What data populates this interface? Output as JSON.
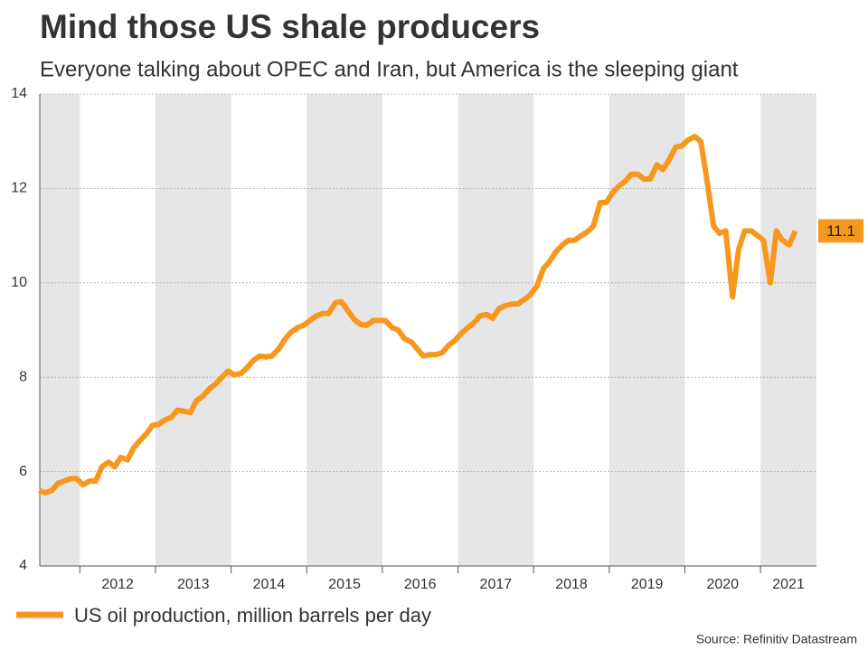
{
  "chart_data": {
    "type": "line",
    "title": "Mind those US shale producers",
    "subtitle": "Everyone talking about OPEC and Iran, but America is the sleeping giant",
    "source": "Source: Refinitiv Datastream",
    "xlim": [
      2011.47,
      2021.74
    ],
    "xticks": [
      2012,
      2013,
      2014,
      2015,
      2016,
      2017,
      2018,
      2019,
      2020,
      2021
    ],
    "ylim": [
      4,
      14
    ],
    "yticks": [
      4,
      6,
      8,
      10,
      12,
      14
    ],
    "grid": true,
    "x": [
      2011.46,
      2011.54,
      2011.63,
      2011.71,
      2011.79,
      2011.88,
      2011.96,
      2012.04,
      2012.13,
      2012.21,
      2012.29,
      2012.38,
      2012.46,
      2012.54,
      2012.63,
      2012.71,
      2012.79,
      2012.88,
      2012.96,
      2013.04,
      2013.13,
      2013.21,
      2013.29,
      2013.38,
      2013.46,
      2013.54,
      2013.63,
      2013.71,
      2013.79,
      2013.88,
      2013.96,
      2014.04,
      2014.13,
      2014.21,
      2014.29,
      2014.38,
      2014.46,
      2014.54,
      2014.63,
      2014.71,
      2014.79,
      2014.88,
      2014.96,
      2015.04,
      2015.13,
      2015.21,
      2015.29,
      2015.38,
      2015.46,
      2015.54,
      2015.63,
      2015.71,
      2015.79,
      2015.88,
      2015.96,
      2016.04,
      2016.13,
      2016.21,
      2016.29,
      2016.38,
      2016.46,
      2016.54,
      2016.63,
      2016.71,
      2016.79,
      2016.88,
      2016.96,
      2017.04,
      2017.13,
      2017.21,
      2017.29,
      2017.38,
      2017.46,
      2017.54,
      2017.63,
      2017.71,
      2017.79,
      2017.88,
      2017.96,
      2018.04,
      2018.13,
      2018.21,
      2018.29,
      2018.38,
      2018.46,
      2018.54,
      2018.63,
      2018.71,
      2018.79,
      2018.88,
      2018.96,
      2019.04,
      2019.13,
      2019.21,
      2019.29,
      2019.38,
      2019.46,
      2019.54,
      2019.63,
      2019.71,
      2019.79,
      2019.88,
      2019.96,
      2020.04,
      2020.13,
      2020.21,
      2020.29,
      2020.38,
      2020.46,
      2020.54,
      2020.63,
      2020.71,
      2020.79,
      2020.88,
      2020.96,
      2021.04,
      2021.13,
      2021.21,
      2021.29,
      2021.38,
      2021.46
    ],
    "series": [
      {
        "name": "US oil production, million barrels per day",
        "color": "#f7971e",
        "values": [
          5.6,
          5.55,
          5.6,
          5.75,
          5.8,
          5.85,
          5.85,
          5.72,
          5.8,
          5.8,
          6.1,
          6.2,
          6.1,
          6.3,
          6.25,
          6.5,
          6.65,
          6.8,
          6.98,
          7.0,
          7.1,
          7.15,
          7.3,
          7.28,
          7.25,
          7.5,
          7.6,
          7.75,
          7.85,
          8.0,
          8.13,
          8.05,
          8.08,
          8.2,
          8.35,
          8.45,
          8.43,
          8.45,
          8.6,
          8.8,
          8.95,
          9.05,
          9.1,
          9.2,
          9.3,
          9.35,
          9.35,
          9.58,
          9.6,
          9.42,
          9.22,
          9.12,
          9.1,
          9.2,
          9.2,
          9.2,
          9.05,
          9.0,
          8.82,
          8.75,
          8.6,
          8.45,
          8.48,
          8.48,
          8.52,
          8.68,
          8.78,
          8.92,
          9.05,
          9.15,
          9.3,
          9.33,
          9.25,
          9.45,
          9.52,
          9.55,
          9.55,
          9.65,
          9.75,
          9.92,
          10.3,
          10.45,
          10.65,
          10.8,
          10.9,
          10.9,
          11.0,
          11.08,
          11.2,
          11.7,
          11.7,
          11.9,
          12.05,
          12.15,
          12.3,
          12.3,
          12.2,
          12.2,
          12.5,
          12.4,
          12.6,
          12.88,
          12.9,
          13.02,
          13.1,
          13.0,
          12.2,
          11.2,
          11.05,
          11.1,
          9.7,
          10.7,
          11.1,
          11.1,
          11.0,
          10.9,
          10.0,
          11.1,
          10.9,
          10.8,
          11.1
        ]
      }
    ]
  }
}
